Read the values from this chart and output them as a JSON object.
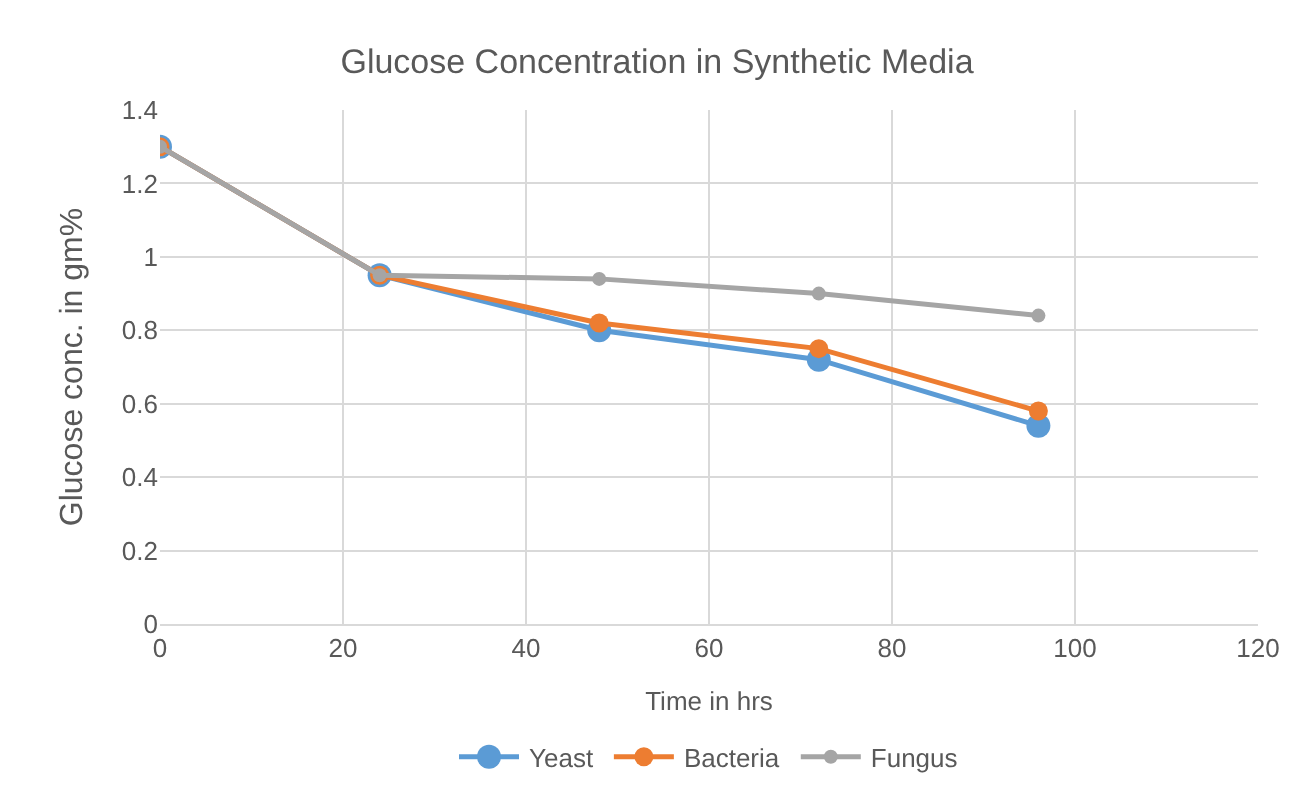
{
  "chart_data": {
    "type": "line",
    "title": "Glucose Concentration in Synthetic Media",
    "xlabel": "Time in hrs",
    "ylabel": "Glucose conc. in gm%",
    "x": [
      0,
      24,
      48,
      72,
      96
    ],
    "series": [
      {
        "name": "Yeast",
        "color": "#5b9bd5",
        "values": [
          1.3,
          0.95,
          0.8,
          0.72,
          0.54
        ]
      },
      {
        "name": "Bacteria",
        "color": "#ed7d31",
        "values": [
          1.3,
          0.95,
          0.82,
          0.75,
          0.58
        ]
      },
      {
        "name": "Fungus",
        "color": "#a5a5a5",
        "values": [
          1.3,
          0.95,
          0.94,
          0.9,
          0.84
        ]
      }
    ],
    "xlim": [
      0,
      120
    ],
    "xticks": [
      0,
      20,
      40,
      60,
      80,
      100,
      120
    ],
    "ylim": [
      0,
      1.4
    ],
    "yticks": [
      0,
      0.2,
      0.4,
      0.6,
      0.8,
      1,
      1.2,
      1.4
    ],
    "grid": true,
    "legend": "bottom",
    "marker": "circle",
    "line_style": "solid"
  }
}
